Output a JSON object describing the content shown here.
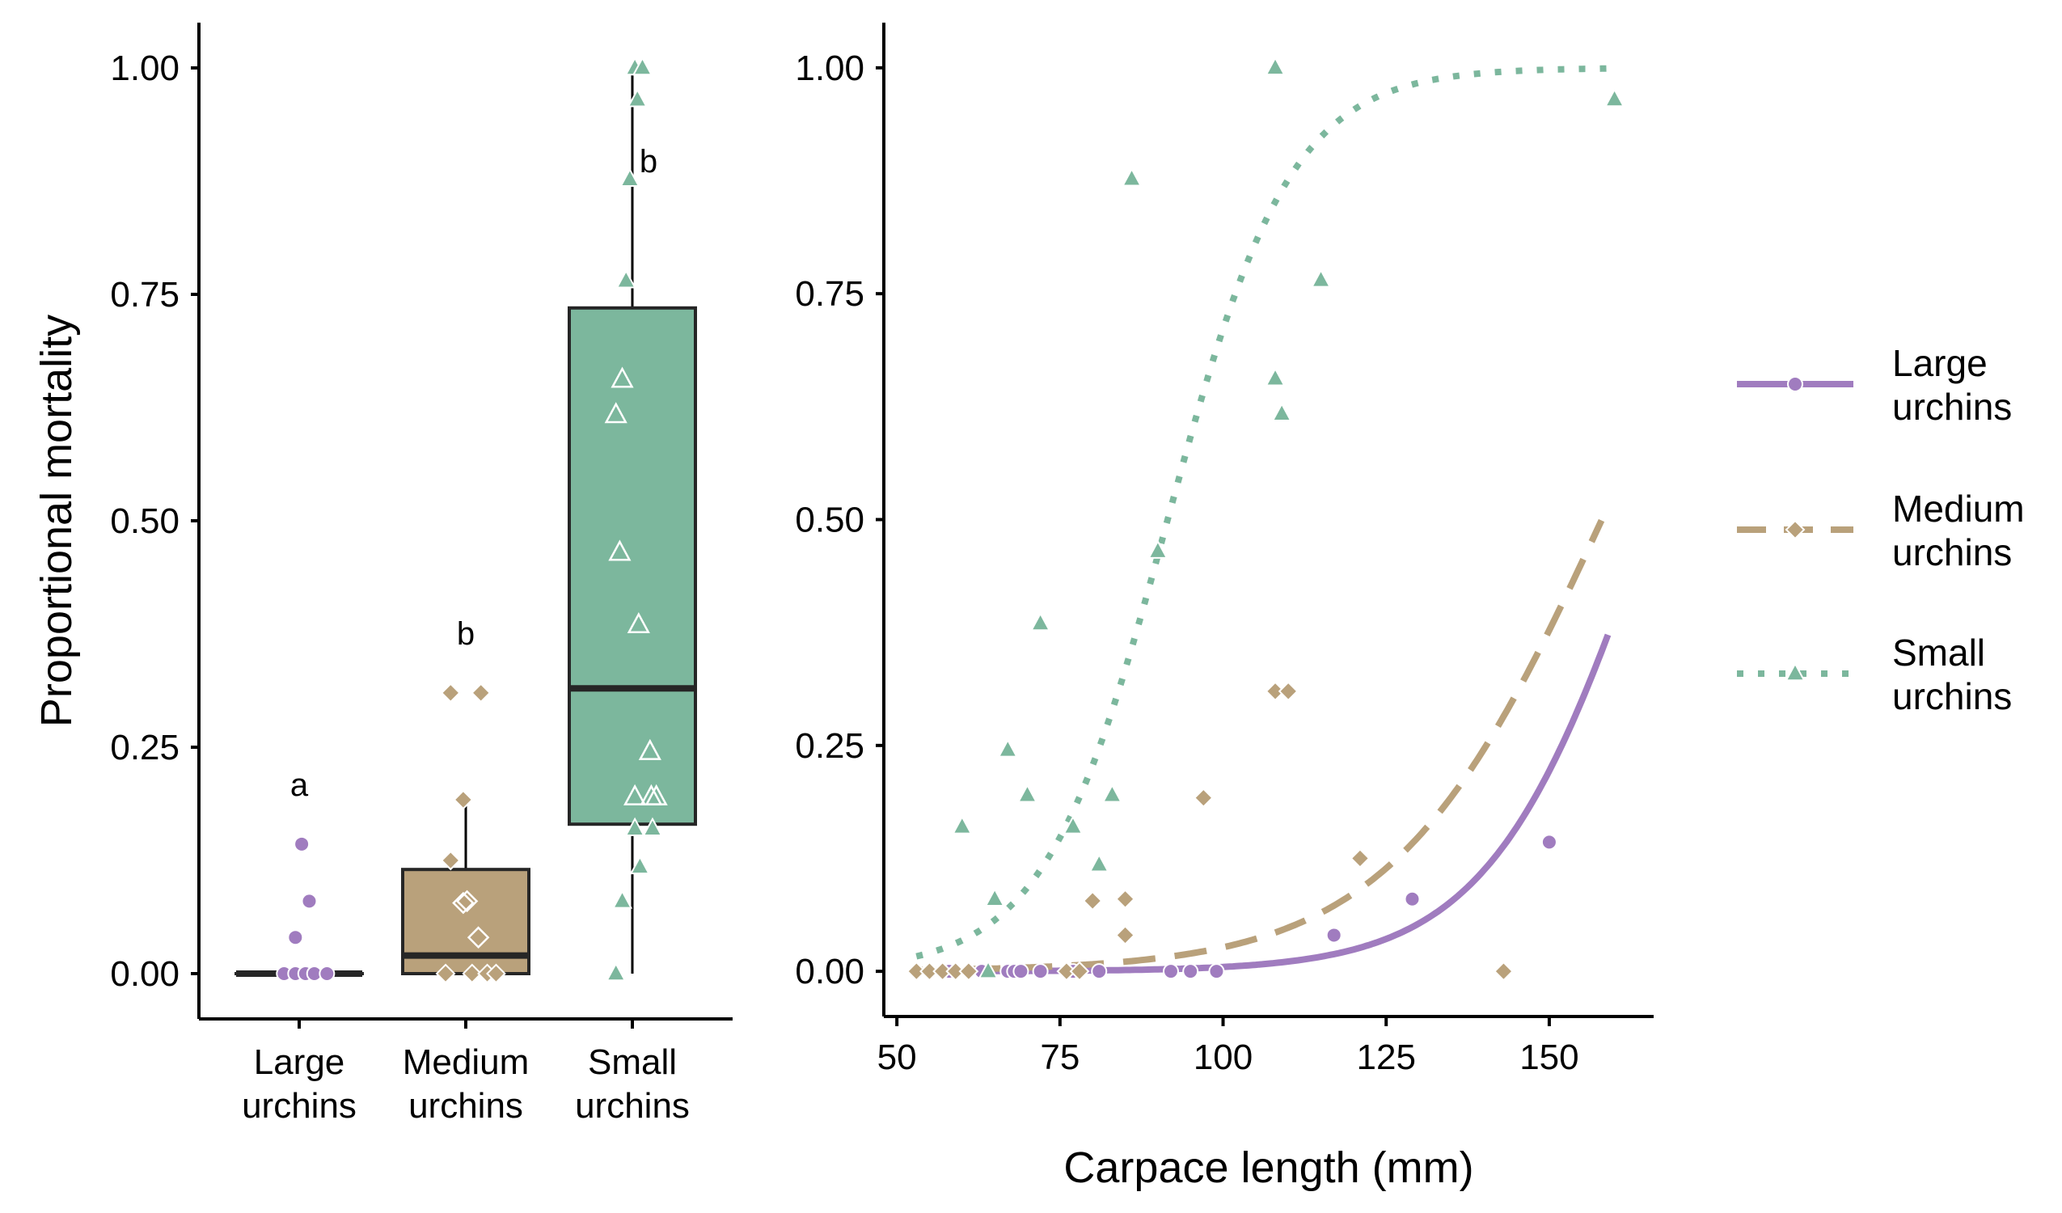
{
  "colors": {
    "large": "#a07cbf",
    "medium": "#b9a17b",
    "small": "#7cb79d",
    "axis": "#000000",
    "box_line": "#262626"
  },
  "chart_data": [
    {
      "type": "box",
      "ylabel": "Proportional mortality",
      "ylim": [
        -0.05,
        1.05
      ],
      "yticks": [
        "0.00",
        "0.25",
        "0.50",
        "0.75",
        "1.00"
      ],
      "categories": [
        {
          "key": "large",
          "label_line1": "Large",
          "label_line2": "urchins",
          "letter": "a",
          "shape": "circle"
        },
        {
          "key": "medium",
          "label_line1": "Medium",
          "label_line2": "urchins",
          "letter": "b",
          "shape": "diamond"
        },
        {
          "key": "small",
          "label_line1": "Small",
          "label_line2": "urchins",
          "letter": "b",
          "shape": "triangle"
        }
      ],
      "boxes": {
        "large": {
          "q1": 0.0,
          "median": 0.0,
          "q3": 0.0,
          "whisker_low": 0.0,
          "whisker_high": 0.0
        },
        "medium": {
          "q1": 0.0,
          "median": 0.02,
          "q3": 0.115,
          "whisker_low": 0.0,
          "whisker_high": 0.19
        },
        "small": {
          "q1": 0.165,
          "median": 0.315,
          "q3": 0.735,
          "whisker_low": 0.0,
          "whisker_high": 1.0
        }
      },
      "points": {
        "large": [
          {
            "j": 0.02,
            "y": 0.143
          },
          {
            "j": -0.03,
            "y": 0.04
          },
          {
            "j": 0.08,
            "y": 0.08
          },
          {
            "j": -0.12,
            "y": 0.0
          },
          {
            "j": -0.03,
            "y": 0.0
          },
          {
            "j": 0.05,
            "y": 0.0
          },
          {
            "j": 0.12,
            "y": 0.0
          },
          {
            "j": 0.22,
            "y": 0.0
          }
        ],
        "medium": [
          {
            "j": -0.12,
            "y": 0.31
          },
          {
            "j": 0.12,
            "y": 0.31
          },
          {
            "j": -0.02,
            "y": 0.192
          },
          {
            "j": -0.12,
            "y": 0.125
          },
          {
            "j": -0.02,
            "y": 0.078
          },
          {
            "j": 0.01,
            "y": 0.08
          },
          {
            "j": 0.1,
            "y": 0.04
          },
          {
            "j": -0.16,
            "y": 0.0
          },
          {
            "j": 0.05,
            "y": 0.0
          },
          {
            "j": 0.17,
            "y": 0.0
          },
          {
            "j": 0.24,
            "y": 0.0
          }
        ],
        "small": [
          {
            "j": 0.02,
            "y": 1.0
          },
          {
            "j": 0.08,
            "y": 1.0
          },
          {
            "j": 0.04,
            "y": 0.965
          },
          {
            "j": -0.02,
            "y": 0.877
          },
          {
            "j": -0.05,
            "y": 0.765
          },
          {
            "j": -0.08,
            "y": 0.656
          },
          {
            "j": -0.13,
            "y": 0.617
          },
          {
            "j": -0.1,
            "y": 0.465
          },
          {
            "j": 0.05,
            "y": 0.385
          },
          {
            "j": 0.14,
            "y": 0.245
          },
          {
            "j": 0.02,
            "y": 0.195
          },
          {
            "j": 0.15,
            "y": 0.195
          },
          {
            "j": 0.19,
            "y": 0.195
          },
          {
            "j": 0.02,
            "y": 0.16
          },
          {
            "j": 0.16,
            "y": 0.16
          },
          {
            "j": 0.06,
            "y": 0.118
          },
          {
            "j": -0.08,
            "y": 0.08
          },
          {
            "j": -0.13,
            "y": 0.0
          }
        ]
      }
    },
    {
      "type": "scatter",
      "xlabel": "Carpace length (mm)",
      "xlim": [
        48,
        166
      ],
      "ylim": [
        -0.05,
        1.05
      ],
      "xticks": [
        "50",
        "75",
        "100",
        "125",
        "150"
      ],
      "yticks": [
        "0.00",
        "0.25",
        "0.50",
        "0.75",
        "1.00"
      ],
      "series": [
        {
          "key": "large",
          "name_line1": "Large",
          "name_line2": "urchins",
          "shape": "circle",
          "dash": "solid",
          "curve": {
            "x_start": 53,
            "x_end": 159,
            "b0": -13.48,
            "b1": 0.0815
          },
          "points": [
            [
              55,
              0
            ],
            [
              57,
              0
            ],
            [
              58,
              0
            ],
            [
              63,
              0
            ],
            [
              67,
              0
            ],
            [
              68,
              0
            ],
            [
              69,
              0
            ],
            [
              72,
              0
            ],
            [
              77,
              0
            ],
            [
              81,
              0
            ],
            [
              92,
              0
            ],
            [
              95,
              0
            ],
            [
              99,
              0
            ],
            [
              117,
              0.04
            ],
            [
              129,
              0.08
            ],
            [
              150,
              0.143
            ]
          ]
        },
        {
          "key": "medium",
          "name_line1": "Medium",
          "name_line2": "urchins",
          "shape": "diamond",
          "dash": "dashed",
          "curve": {
            "x_start": 53,
            "x_end": 158,
            "b0": -9.8,
            "b1": 0.062
          },
          "points": [
            [
              53,
              0
            ],
            [
              55,
              0
            ],
            [
              57,
              0
            ],
            [
              59,
              0
            ],
            [
              61,
              0
            ],
            [
              76,
              0
            ],
            [
              78,
              0
            ],
            [
              143,
              0
            ],
            [
              85,
              0.04
            ],
            [
              80,
              0.078
            ],
            [
              85,
              0.08
            ],
            [
              121,
              0.125
            ],
            [
              97,
              0.192
            ],
            [
              108,
              0.31
            ],
            [
              110,
              0.31
            ]
          ]
        },
        {
          "key": "small",
          "name_line1": "Small",
          "name_line2": "urchins",
          "shape": "triangle",
          "dash": "dotted",
          "curve": {
            "x_start": 53,
            "x_end": 160,
            "b0": -9.7,
            "b1": 0.106
          },
          "points": [
            [
              64,
              0
            ],
            [
              65,
              0.08
            ],
            [
              81,
              0.118
            ],
            [
              60,
              0.16
            ],
            [
              77,
              0.16
            ],
            [
              70,
              0.195
            ],
            [
              83,
              0.195
            ],
            [
              67,
              0.245
            ],
            [
              72,
              0.385
            ],
            [
              90,
              0.465
            ],
            [
              108,
              0.656
            ],
            [
              109,
              0.617
            ],
            [
              115,
              0.765
            ],
            [
              86,
              0.877
            ],
            [
              108,
              1.0
            ],
            [
              160,
              0.965
            ]
          ]
        }
      ]
    }
  ]
}
